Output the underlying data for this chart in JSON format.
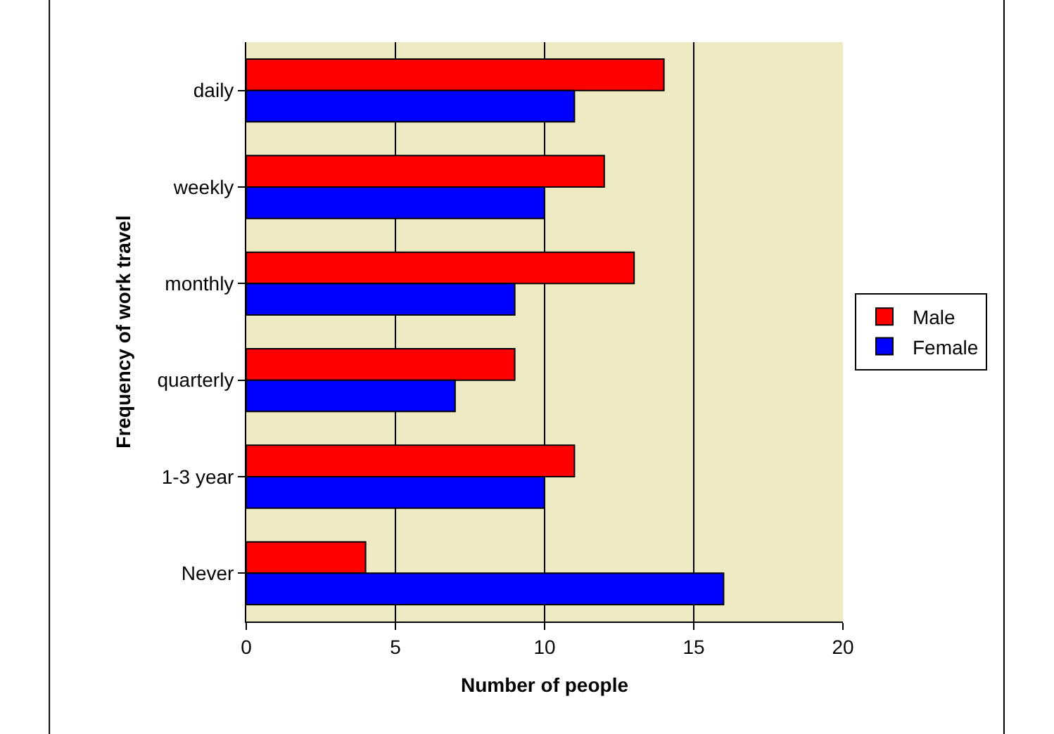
{
  "chart_data": {
    "type": "bar",
    "orientation": "horizontal",
    "xlabel": "Number of people",
    "ylabel": "Frequency of work travel",
    "categories": [
      "daily",
      "weekly",
      "monthly",
      "quarterly",
      "1-3 year",
      "Never"
    ],
    "series": [
      {
        "name": "Male",
        "color": "#ff0000",
        "values": [
          14,
          12,
          13,
          9,
          11,
          4
        ]
      },
      {
        "name": "Female",
        "color": "#0000ff",
        "values": [
          11,
          10,
          9,
          7,
          10,
          16
        ]
      }
    ],
    "xlim": [
      0,
      20
    ],
    "xticks": [
      0,
      5,
      10,
      15,
      20
    ],
    "grid": "x",
    "legend": "right"
  }
}
